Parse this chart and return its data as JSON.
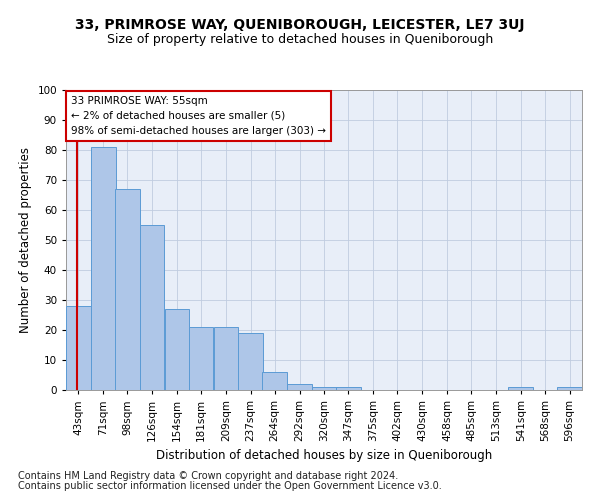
{
  "title": "33, PRIMROSE WAY, QUENIBOROUGH, LEICESTER, LE7 3UJ",
  "subtitle": "Size of property relative to detached houses in Queniborough",
  "xlabel": "Distribution of detached houses by size in Queniborough",
  "ylabel": "Number of detached properties",
  "footnote1": "Contains HM Land Registry data © Crown copyright and database right 2024.",
  "footnote2": "Contains public sector information licensed under the Open Government Licence v3.0.",
  "annotation_line1": "33 PRIMROSE WAY: 55sqm",
  "annotation_line2": "← 2% of detached houses are smaller (5)",
  "annotation_line3": "98% of semi-detached houses are larger (303) →",
  "bins": [
    43,
    71,
    98,
    126,
    154,
    181,
    209,
    237,
    264,
    292,
    320,
    347,
    375,
    402,
    430,
    458,
    485,
    513,
    541,
    568,
    596
  ],
  "bar_labels": [
    "43sqm",
    "71sqm",
    "98sqm",
    "126sqm",
    "154sqm",
    "181sqm",
    "209sqm",
    "237sqm",
    "264sqm",
    "292sqm",
    "320sqm",
    "347sqm",
    "375sqm",
    "402sqm",
    "430sqm",
    "458sqm",
    "485sqm",
    "513sqm",
    "541sqm",
    "568sqm",
    "596sqm"
  ],
  "values": [
    28,
    81,
    67,
    55,
    27,
    21,
    21,
    19,
    6,
    2,
    1,
    1,
    0,
    0,
    0,
    0,
    0,
    0,
    1,
    0,
    1
  ],
  "bar_color": "#aec6e8",
  "bar_edge_color": "#5b9bd5",
  "annotation_box_color": "#ffffff",
  "annotation_box_edge_color": "#cc0000",
  "vline_color": "#cc0000",
  "vline_x_data": 55,
  "ylim": [
    0,
    100
  ],
  "yticks": [
    0,
    10,
    20,
    30,
    40,
    50,
    60,
    70,
    80,
    90,
    100
  ],
  "grid_color": "#c0cce0",
  "background_color": "#e8eef8",
  "fig_background": "#ffffff",
  "title_fontsize": 10,
  "subtitle_fontsize": 9,
  "axis_label_fontsize": 8.5,
  "tick_fontsize": 7.5,
  "annotation_fontsize": 7.5,
  "footnote_fontsize": 7
}
